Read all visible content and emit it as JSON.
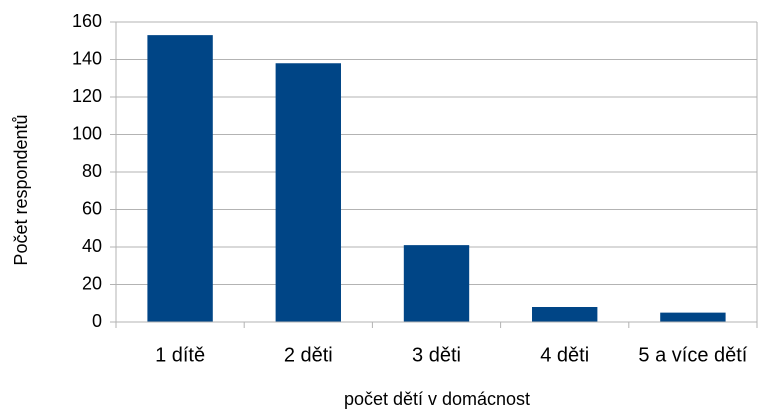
{
  "chart_data": {
    "type": "bar",
    "categories": [
      "1 dítě",
      "2 děti",
      "3 děti",
      "4 děti",
      "5 a více dětí"
    ],
    "values": [
      153,
      138,
      41,
      8,
      5
    ],
    "color": "#004586",
    "xlabel": "počet dětí v domácnost",
    "ylabel": "Počet respondentů",
    "ylim": [
      0,
      160
    ],
    "yticks": [
      0,
      20,
      40,
      60,
      80,
      100,
      120,
      140,
      160
    ],
    "grid": true
  }
}
